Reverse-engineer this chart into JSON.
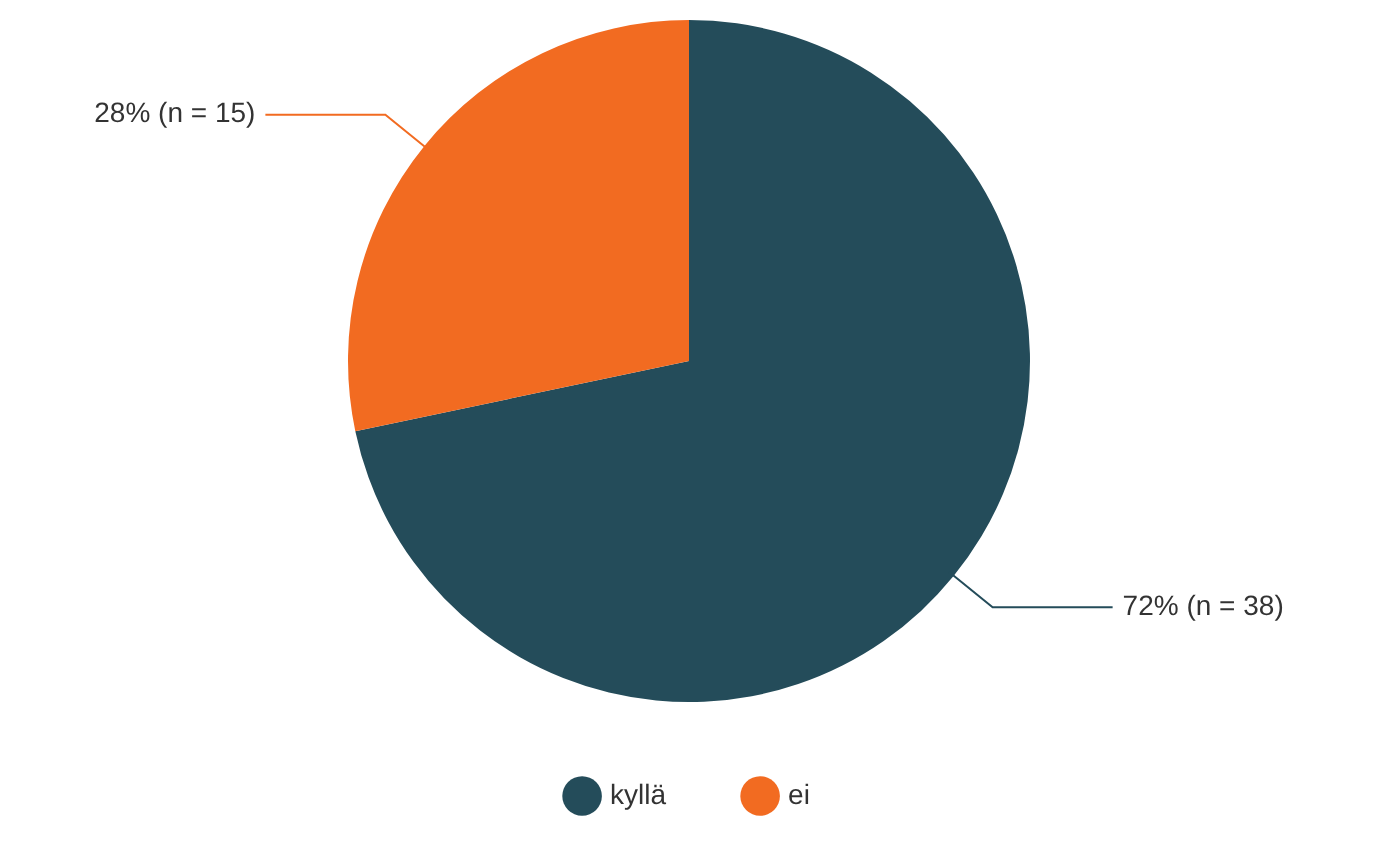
{
  "chart_data": {
    "type": "pie",
    "categories": [
      "kyllä",
      "ei"
    ],
    "values": [
      38,
      15
    ],
    "colors": [
      "#244c5a",
      "#f26b21"
    ],
    "value_labels": [
      "72% (n = 38)",
      "28% (n = 15)"
    ],
    "legend": "bottom"
  }
}
